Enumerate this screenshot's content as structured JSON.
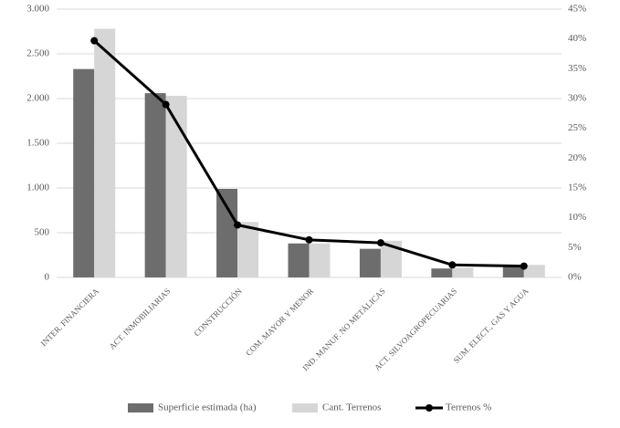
{
  "chart_data": {
    "type": "bar_line",
    "categories": [
      "INTER. FINANCIERA",
      "ACT. INMOBILIARIAS",
      "CONSTRUCCIÓN",
      "COM. MAYOR Y MENOR",
      "IND. MANUF. NO METÁLICAS",
      "ACT. SILVOAGROPECUARIAS",
      "SUM. ELECT., GAS Y AGUA"
    ],
    "series": [
      {
        "name": "Superficie estimada (ha)",
        "color": "#6d6d6d",
        "type": "bar",
        "axis": "y",
        "values": [
          2330,
          2060,
          990,
          380,
          320,
          100,
          120
        ]
      },
      {
        "name": "Cant. Terrenos",
        "color": "#d6d6d6",
        "type": "bar",
        "axis": "y",
        "values": [
          2780,
          2030,
          620,
          380,
          410,
          110,
          140
        ]
      },
      {
        "name": "Terrenos %",
        "color": "#000000",
        "type": "line",
        "axis": "y2",
        "values": [
          39.7,
          29.0,
          8.8,
          6.3,
          5.8,
          2.1,
          1.9
        ]
      }
    ],
    "ylim": [
      0,
      3000
    ],
    "yticks": [
      0,
      500,
      {
        "value": 1000,
        "label": "1.000"
      },
      {
        "value": 1500,
        "label": "1.500"
      },
      {
        "value": 2000,
        "label": "2.000"
      },
      {
        "value": 2500,
        "label": "2.500"
      },
      {
        "value": 3000,
        "label": "3.000"
      }
    ],
    "y2lim": [
      0,
      45
    ],
    "y2ticks": [
      {
        "value": 0,
        "label": "0%"
      },
      {
        "value": 5,
        "label": "5%"
      },
      {
        "value": 10,
        "label": "10%"
      },
      {
        "value": 15,
        "label": "15%"
      },
      {
        "value": 20,
        "label": "20%"
      },
      {
        "value": 25,
        "label": "25%"
      },
      {
        "value": 30,
        "label": "30%"
      },
      {
        "value": 35,
        "label": "35%"
      },
      {
        "value": 40,
        "label": "40%"
      },
      {
        "value": 45,
        "label": "45%"
      }
    ],
    "grid": true,
    "legend": "bottom"
  }
}
